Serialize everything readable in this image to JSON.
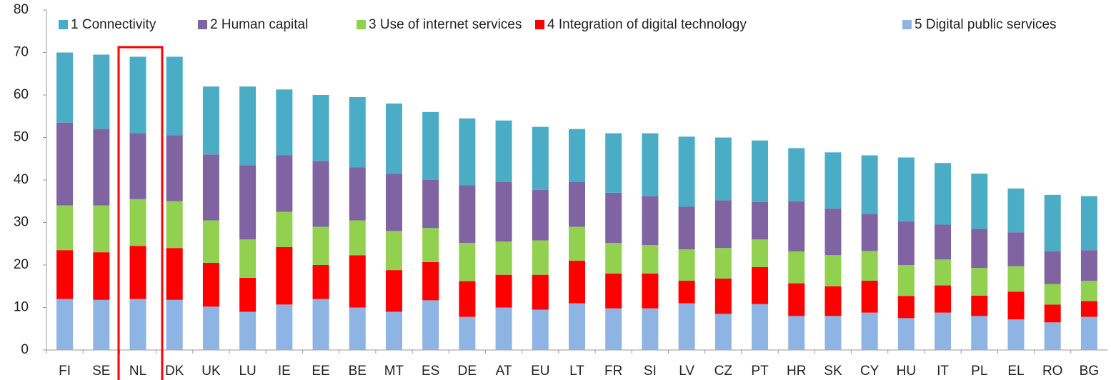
{
  "chart_data": {
    "type": "stacked_bar",
    "categories": [
      "FI",
      "SE",
      "NL",
      "DK",
      "UK",
      "LU",
      "IE",
      "EE",
      "BE",
      "MT",
      "ES",
      "DE",
      "AT",
      "EU",
      "LT",
      "FR",
      "SI",
      "LV",
      "CZ",
      "PT",
      "HR",
      "SK",
      "CY",
      "HU",
      "IT",
      "PL",
      "EL",
      "RO",
      "BG"
    ],
    "series": [
      {
        "name": "1 Connectivity",
        "color": "#4bacc6",
        "values": [
          16.5,
          17.5,
          18,
          18.5,
          16,
          18.5,
          15.5,
          15.5,
          16.5,
          16.5,
          16,
          15.7,
          14.5,
          14.8,
          12.5,
          14,
          14.8,
          16.5,
          14.8,
          14.5,
          12.5,
          13.2,
          13.8,
          15,
          14.5,
          13,
          10.3,
          13.3,
          12.7
        ]
      },
      {
        "name": "2 Human capital",
        "color": "#8064a2",
        "values": [
          19.5,
          18,
          15.5,
          15.5,
          15.5,
          17.5,
          13.3,
          15.5,
          12.5,
          13.5,
          11.3,
          13.6,
          14,
          11.9,
          10.5,
          11.8,
          11.5,
          10,
          11.2,
          8.8,
          11.8,
          11,
          8.7,
          10.3,
          8.2,
          9.2,
          8,
          7.7,
          7.2
        ]
      },
      {
        "name": "3 Use of internet services",
        "color": "#92d050",
        "values": [
          10.5,
          11,
          11,
          11,
          10,
          9,
          8.3,
          9,
          8.2,
          9.2,
          8,
          9,
          7.8,
          8.1,
          8,
          7.2,
          6.7,
          7.4,
          7.2,
          6.5,
          7.5,
          7.3,
          7,
          7.3,
          6.1,
          6.5,
          6,
          4.8,
          4.8
        ]
      },
      {
        "name": "4 Integration of digital technology",
        "color": "#ff0000",
        "values": [
          11.5,
          11.2,
          12.5,
          12.2,
          10.3,
          8,
          13.5,
          8,
          12.3,
          9.8,
          9,
          8.4,
          7.7,
          8.2,
          10,
          8.2,
          8.2,
          5.3,
          8.3,
          8.7,
          7.7,
          7,
          7.5,
          5.2,
          6.4,
          4.8,
          6.5,
          4.2,
          3.7
        ]
      },
      {
        "name": "5 Digital public services",
        "color": "#8db4e2",
        "values": [
          12,
          11.8,
          12,
          11.8,
          10.2,
          9,
          10.7,
          12,
          10,
          9,
          11.7,
          7.8,
          10,
          9.5,
          11,
          9.8,
          9.8,
          11,
          8.5,
          10.8,
          8,
          8,
          8.8,
          7.5,
          8.8,
          8,
          7.2,
          6.5,
          7.8
        ]
      }
    ],
    "ylim": [
      0,
      80
    ],
    "yticks": [
      0,
      10,
      20,
      30,
      40,
      50,
      60,
      70,
      80
    ],
    "legend": "top"
  }
}
